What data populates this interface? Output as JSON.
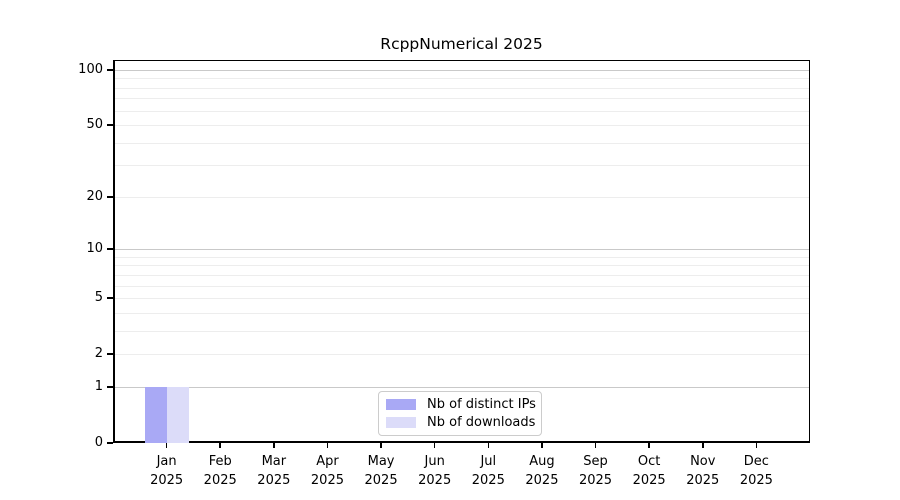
{
  "chart_data": {
    "type": "bar",
    "title": "RcppNumerical 2025",
    "months": [
      "Jan",
      "Feb",
      "Mar",
      "Apr",
      "May",
      "Jun",
      "Jul",
      "Aug",
      "Sep",
      "Oct",
      "Nov",
      "Dec"
    ],
    "year": "2025",
    "series": [
      {
        "name": "Nb of distinct IPs",
        "color": "#a9a9f5",
        "values": [
          1,
          0,
          0,
          0,
          0,
          0,
          0,
          0,
          0,
          0,
          0,
          0
        ]
      },
      {
        "name": "Nb of downloads",
        "color": "#dcdcf9",
        "values": [
          1,
          0,
          0,
          0,
          0,
          0,
          0,
          0,
          0,
          0,
          0,
          0
        ]
      }
    ],
    "y_axis": {
      "scale": "log10(1+y)",
      "tick_values": [
        0,
        1,
        2,
        5,
        10,
        20,
        50,
        100
      ],
      "major_gridlines": [
        1,
        10,
        100
      ],
      "minor_gridlines": [
        2,
        3,
        4,
        5,
        6,
        7,
        8,
        9,
        20,
        30,
        40,
        50,
        60,
        70,
        80,
        90
      ],
      "ylim": [
        0,
        100
      ]
    },
    "grid": "horizontal",
    "legend_position": "lower center inside plot"
  },
  "colors": {
    "background": "#ffffff",
    "axis": "#000000",
    "text": "#000000",
    "major_gridline": "#c9c9c9",
    "minor_gridline": "#ededed",
    "legend_border": "#cccccc"
  }
}
